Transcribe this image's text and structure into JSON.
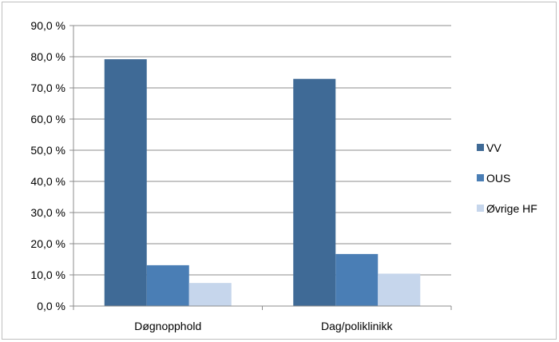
{
  "chart_data": {
    "type": "bar",
    "categories": [
      "Døgnopphold",
      "Dag/poliklinikk"
    ],
    "series": [
      {
        "name": "VV",
        "values": [
          79.2,
          72.9
        ],
        "color": "#3f6a96"
      },
      {
        "name": "OUS",
        "values": [
          13.1,
          16.7
        ],
        "color": "#4a7eb5"
      },
      {
        "name": "Øvrige HF",
        "values": [
          7.4,
          10.4
        ],
        "color": "#c6d6ec"
      }
    ],
    "ylim": [
      0,
      90
    ],
    "yticks": [
      "0,0 %",
      "10,0 %",
      "20,0 %",
      "30,0 %",
      "40,0 %",
      "50,0 %",
      "60,0 %",
      "70,0 %",
      "80,0 %",
      "90,0 %"
    ],
    "grid": true,
    "legend_position": "right"
  }
}
